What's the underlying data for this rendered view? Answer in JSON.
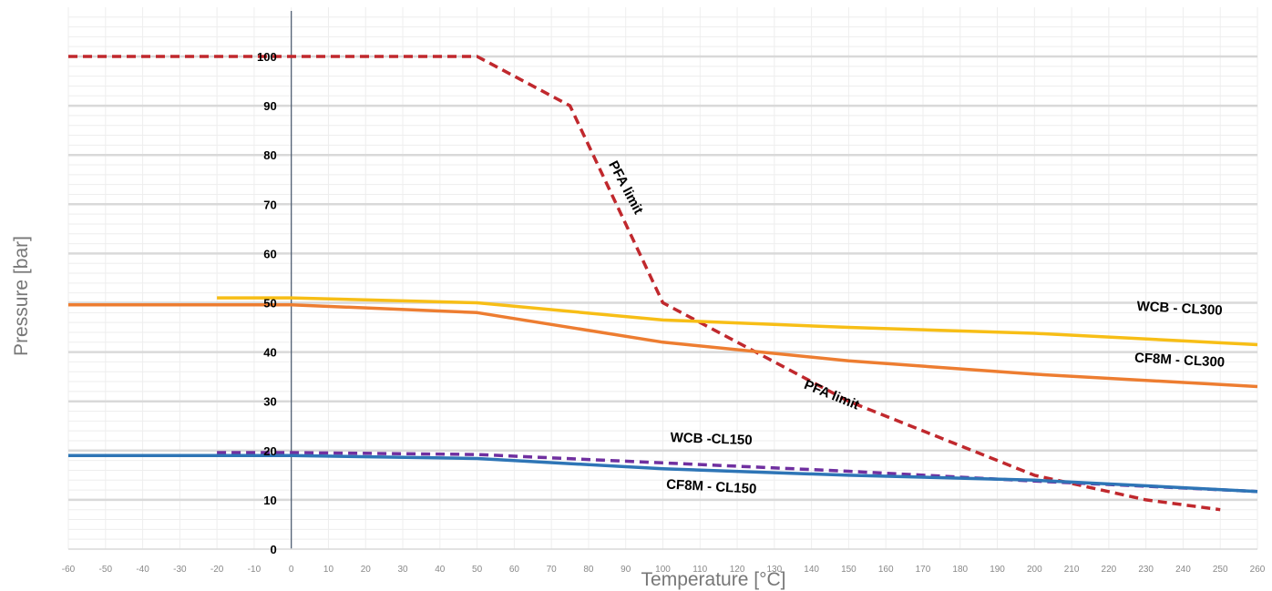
{
  "chart_data": {
    "type": "line",
    "xlabel": "Temperature  [°C]",
    "ylabel": "Pressure [bar]",
    "xlim": [
      -60,
      260
    ],
    "ylim": [
      0,
      100
    ],
    "grid": true,
    "x_ticks": [
      -60,
      -50,
      -40,
      -30,
      -20,
      -10,
      0,
      10,
      20,
      30,
      40,
      50,
      60,
      70,
      80,
      90,
      100,
      110,
      120,
      130,
      140,
      150,
      160,
      170,
      180,
      190,
      200,
      210,
      220,
      230,
      240,
      250,
      260
    ],
    "y_ticks": [
      0,
      10,
      20,
      30,
      40,
      50,
      60,
      70,
      80,
      90,
      100
    ],
    "series": [
      {
        "key": "pfa",
        "style": "dashed",
        "color": "#c0282d",
        "x": [
          -60,
          0,
          50,
          75,
          100,
          150,
          200,
          230,
          250
        ],
        "y": [
          100,
          100,
          100,
          90,
          50,
          30,
          15,
          10,
          8
        ]
      },
      {
        "key": "wcb_cl300",
        "style": "solid",
        "color": "#f7be16",
        "x": [
          -20,
          0,
          50,
          100,
          150,
          200,
          260
        ],
        "y": [
          51,
          51,
          50,
          46.5,
          45,
          43.8,
          41.5
        ]
      },
      {
        "key": "cf8m_cl300",
        "style": "solid",
        "color": "#ed7d31",
        "x": [
          -60,
          0,
          50,
          100,
          150,
          200,
          260
        ],
        "y": [
          49.6,
          49.6,
          48,
          42,
          38.2,
          35.5,
          33
        ]
      },
      {
        "key": "wcb_cl150",
        "style": "dashed",
        "color": "#7030a0",
        "x": [
          -20,
          0,
          50,
          100,
          150,
          200,
          260
        ],
        "y": [
          19.6,
          19.6,
          19.2,
          17.5,
          15.8,
          13.8,
          11.7
        ]
      },
      {
        "key": "cf8m_cl150",
        "style": "solid",
        "color": "#2e75b6",
        "x": [
          -60,
          0,
          50,
          100,
          150,
          200,
          260
        ],
        "y": [
          19,
          19,
          18.4,
          16.3,
          15,
          14,
          11.7
        ]
      }
    ],
    "annotations": [
      {
        "text": "PFA limit",
        "x": 89,
        "y": 73,
        "rotate": 62
      },
      {
        "text": "PFA limit",
        "x": 145,
        "y": 30.5,
        "rotate": 22
      },
      {
        "text": "WCB - CL300",
        "x": 239,
        "y": 48,
        "rotate": 3
      },
      {
        "text": "CF8M - CL300",
        "x": 239,
        "y": 37.5,
        "rotate": 3
      },
      {
        "text": "WCB -CL150",
        "x": 113,
        "y": 21.5,
        "rotate": 2
      },
      {
        "text": "CF8M - CL150",
        "x": 113,
        "y": 11.8,
        "rotate": 3
      }
    ]
  }
}
